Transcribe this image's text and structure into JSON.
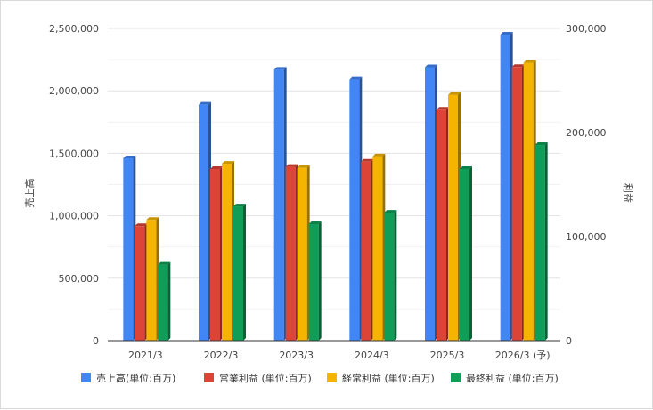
{
  "chart_data": {
    "type": "bar",
    "title": "",
    "xlabel": "",
    "ylabel_left": "売上高",
    "ylabel_right": "利益",
    "categories": [
      "2021/3",
      "2022/3",
      "2023/3",
      "2024/3",
      "2025/3",
      "2026/3 (予)"
    ],
    "ylim_left": [
      0,
      2500000
    ],
    "ylim_right": [
      0,
      300000
    ],
    "yticks_left": [
      "0",
      "500,000",
      "1,000,000",
      "1,500,000",
      "2,000,000",
      "2,500,000"
    ],
    "yticks_right": [
      "0",
      "100,000",
      "200,000",
      "300,000"
    ],
    "grid": true,
    "legend_position": "bottom",
    "series": [
      {
        "name": "売上高(単位:百万)",
        "axis": "left",
        "color": "#4285f4",
        "values": [
          1460000,
          1890000,
          2170000,
          2090000,
          2190000,
          2450000
        ]
      },
      {
        "name": "営業利益 (単位:百万)",
        "axis": "right",
        "color": "#db4437",
        "values": [
          110000,
          165000,
          167000,
          172000,
          222000,
          263000
        ]
      },
      {
        "name": "経常利益 (単位:百万)",
        "axis": "right",
        "color": "#f4b400",
        "values": [
          116000,
          170000,
          166000,
          177000,
          236000,
          267000
        ]
      },
      {
        "name": "最終利益 (単位:百万)",
        "axis": "right",
        "color": "#0f9d58",
        "values": [
          73000,
          129000,
          112000,
          123000,
          165000,
          188000
        ]
      }
    ]
  }
}
